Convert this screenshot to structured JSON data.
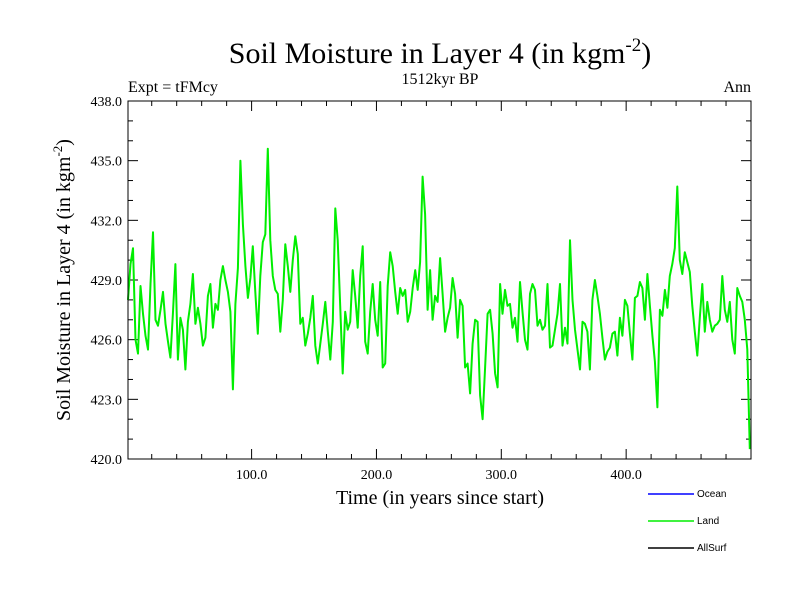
{
  "chart_data": {
    "type": "line",
    "title_main": "Soil Moisture in Layer 4 (in kgm",
    "title_sup": "-2",
    "title_close": ")",
    "subtitle": "1512kyr BP",
    "left_label": "Expt = tFMcy",
    "right_label": "Ann",
    "xlabel": "Time (in years since start)",
    "ylabel_main": "Soil Moisture in Layer 4 (in kgm",
    "ylabel_sup": "-2",
    "ylabel_close": ")",
    "xlim": [
      1,
      500
    ],
    "ylim": [
      420.0,
      438.0
    ],
    "x_ticks": [
      {
        "value": 100,
        "label": "100.0"
      },
      {
        "value": 200,
        "label": "200.0"
      },
      {
        "value": 300,
        "label": "300.0"
      },
      {
        "value": 400,
        "label": "400.0"
      }
    ],
    "y_ticks": [
      {
        "value": 420,
        "label": "420.0"
      },
      {
        "value": 423,
        "label": "423.0"
      },
      {
        "value": 426,
        "label": "426.0"
      },
      {
        "value": 429,
        "label": "429.0"
      },
      {
        "value": 432,
        "label": "432.0"
      },
      {
        "value": 435,
        "label": "435.0"
      },
      {
        "value": 438,
        "label": "438.0"
      }
    ],
    "legend": [
      {
        "name": "Ocean",
        "color": "#0000ff"
      },
      {
        "name": "Land",
        "color": "#00ee00"
      },
      {
        "name": "AllSurf",
        "color": "#000000"
      }
    ],
    "series": [
      {
        "name": "Land",
        "color": "#00ee00",
        "x_start": 1,
        "x_step": 2,
        "values": [
          428.0,
          429.8,
          430.6,
          426.0,
          425.3,
          428.7,
          427.3,
          426.2,
          425.5,
          428.8,
          431.4,
          427.0,
          426.7,
          427.5,
          428.4,
          426.8,
          425.9,
          425.1,
          427.3,
          429.8,
          425.0,
          427.1,
          426.5,
          424.5,
          426.9,
          427.8,
          429.3,
          426.8,
          427.6,
          426.8,
          425.7,
          426.1,
          428.2,
          428.8,
          426.6,
          427.8,
          427.5,
          429.0,
          429.7,
          429.0,
          428.4,
          427.4,
          423.5,
          427.8,
          429.6,
          435.0,
          431.8,
          429.7,
          428.1,
          429.1,
          430.7,
          428.4,
          426.3,
          429.2,
          430.9,
          431.3,
          435.6,
          431.0,
          429.2,
          428.5,
          428.3,
          426.4,
          428.0,
          430.8,
          429.7,
          428.4,
          430.0,
          431.2,
          430.3,
          426.8,
          427.1,
          425.7,
          426.3,
          427.1,
          428.2,
          425.7,
          424.8,
          425.8,
          426.8,
          427.9,
          426.4,
          425.0,
          426.9,
          432.6,
          431.0,
          427.7,
          424.3,
          427.4,
          426.5,
          426.9,
          429.5,
          428.2,
          426.6,
          429.2,
          430.7,
          425.9,
          425.3,
          427.4,
          428.8,
          427.0,
          426.2,
          428.9,
          424.6,
          424.8,
          428.7,
          430.4,
          429.7,
          428.4,
          427.3,
          428.6,
          428.2,
          428.5,
          426.9,
          427.4,
          428.6,
          429.5,
          428.5,
          429.9,
          434.2,
          432.3,
          427.5,
          429.5,
          427.0,
          428.2,
          427.9,
          430.1,
          428.3,
          426.4,
          427.1,
          427.6,
          429.1,
          428.3,
          426.1,
          428.0,
          427.7,
          424.6,
          424.8,
          423.3,
          425.8,
          427.0,
          426.9,
          423.2,
          422.0,
          424.6,
          427.3,
          427.5,
          426.3,
          424.3,
          423.6,
          428.8,
          427.3,
          428.5,
          427.7,
          427.8,
          426.6,
          427.1,
          425.9,
          428.9,
          427.4,
          426.0,
          425.5,
          428.3,
          428.8,
          428.5,
          426.7,
          427.0,
          426.5,
          426.7,
          428.8,
          425.6,
          425.7,
          426.5,
          427.3,
          428.8,
          425.7,
          426.6,
          425.8,
          431.0,
          428.0,
          426.5,
          425.5,
          424.5,
          426.9,
          426.8,
          426.4,
          424.5,
          428.0,
          429.0,
          428.2,
          427.3,
          426.1,
          425.0,
          425.4,
          425.6,
          426.3,
          426.4,
          425.2,
          427.1,
          426.2,
          428.0,
          427.7,
          426.3,
          425.0,
          428.1,
          428.2,
          428.9,
          428.6,
          427.0,
          429.3,
          427.7,
          426.2,
          424.9,
          422.6,
          427.5,
          427.2,
          428.5,
          427.6,
          429.2,
          429.8,
          430.6,
          433.7,
          430.0,
          429.3,
          430.4,
          429.9,
          429.4,
          427.7,
          426.4,
          425.2,
          427.1,
          428.8,
          426.4,
          427.9,
          427.0,
          426.4,
          426.7,
          426.8,
          427.0,
          429.2,
          427.5,
          426.9,
          427.9,
          426.0,
          425.3,
          428.6,
          428.2,
          427.9,
          427.0,
          425.5,
          420.5
        ]
      },
      {
        "name": "Ocean",
        "color": "#0000ff",
        "values": []
      },
      {
        "name": "AllSurf",
        "color": "#000000",
        "values": []
      }
    ]
  }
}
